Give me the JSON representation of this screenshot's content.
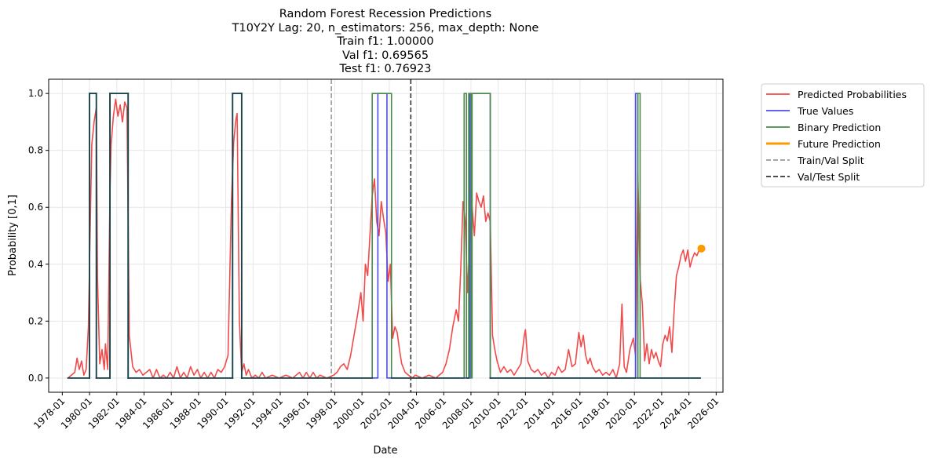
{
  "chart_data": {
    "type": "line",
    "title_lines": [
      "Random Forest Recession Predictions",
      "T10Y2Y Lag: 20, n_estimators: 256, max_depth: None",
      "Train f1: 1.00000",
      "Val f1: 0.69565",
      "Test f1: 0.76923"
    ],
    "xlabel": "Date",
    "ylabel": "Probability [0,1]",
    "xlim": [
      "1977-01-01",
      "2026-07-01"
    ],
    "ylim": [
      -0.05,
      1.05
    ],
    "x_ticks": [
      "1978-01",
      "1980-01",
      "1982-01",
      "1984-01",
      "1986-01",
      "1988-01",
      "1990-01",
      "1992-01",
      "1994-01",
      "1996-01",
      "1998-01",
      "2000-01",
      "2002-01",
      "2004-01",
      "2006-01",
      "2008-01",
      "2010-01",
      "2012-01",
      "2014-01",
      "2016-01",
      "2018-01",
      "2020-01",
      "2022-01",
      "2024-01",
      "2026-01"
    ],
    "y_ticks": [
      "0.0",
      "0.2",
      "0.4",
      "0.6",
      "0.8",
      "1.0"
    ],
    "grid": true,
    "legend_position": "outside-top-right",
    "colors": {
      "predicted": "#f24a4a",
      "true": "#4b4bf0",
      "binary": "#4a8a4a",
      "future": "#ff9900",
      "train_val_split": "#999999",
      "val_test_split": "#333333",
      "overlap": "#17444a"
    },
    "series": [
      {
        "name": "Predicted Probabilities",
        "kind": "line",
        "points": [
          [
            "1978-06",
            0.0
          ],
          [
            "1978-09",
            0.01
          ],
          [
            "1978-12",
            0.02
          ],
          [
            "1979-02",
            0.07
          ],
          [
            "1979-04",
            0.03
          ],
          [
            "1979-06",
            0.06
          ],
          [
            "1979-08",
            0.01
          ],
          [
            "1979-10",
            0.03
          ],
          [
            "1979-12",
            0.18
          ],
          [
            "1980-02",
            0.62
          ],
          [
            "1980-03",
            0.82
          ],
          [
            "1980-05",
            0.9
          ],
          [
            "1980-07",
            0.95
          ],
          [
            "1980-08",
            0.35
          ],
          [
            "1980-10",
            0.05
          ],
          [
            "1980-12",
            0.1
          ],
          [
            "1981-02",
            0.03
          ],
          [
            "1981-03",
            0.12
          ],
          [
            "1981-05",
            0.03
          ],
          [
            "1981-07",
            0.65
          ],
          [
            "1981-08",
            0.82
          ],
          [
            "1981-10",
            0.92
          ],
          [
            "1981-12",
            0.98
          ],
          [
            "1982-02",
            0.92
          ],
          [
            "1982-04",
            0.96
          ],
          [
            "1982-06",
            0.9
          ],
          [
            "1982-08",
            0.97
          ],
          [
            "1982-10",
            0.95
          ],
          [
            "1982-12",
            0.15
          ],
          [
            "1983-03",
            0.04
          ],
          [
            "1983-06",
            0.02
          ],
          [
            "1983-09",
            0.03
          ],
          [
            "1983-12",
            0.01
          ],
          [
            "1984-03",
            0.02
          ],
          [
            "1984-06",
            0.03
          ],
          [
            "1984-09",
            0.0
          ],
          [
            "1984-12",
            0.03
          ],
          [
            "1985-03",
            0.0
          ],
          [
            "1985-06",
            0.01
          ],
          [
            "1985-09",
            0.0
          ],
          [
            "1985-12",
            0.02
          ],
          [
            "1986-03",
            0.0
          ],
          [
            "1986-06",
            0.04
          ],
          [
            "1986-09",
            0.0
          ],
          [
            "1986-12",
            0.02
          ],
          [
            "1987-03",
            0.0
          ],
          [
            "1987-06",
            0.04
          ],
          [
            "1987-09",
            0.01
          ],
          [
            "1987-12",
            0.03
          ],
          [
            "1988-03",
            0.0
          ],
          [
            "1988-06",
            0.02
          ],
          [
            "1988-09",
            0.0
          ],
          [
            "1988-12",
            0.02
          ],
          [
            "1989-03",
            0.0
          ],
          [
            "1989-06",
            0.03
          ],
          [
            "1989-09",
            0.02
          ],
          [
            "1989-12",
            0.04
          ],
          [
            "1990-03",
            0.08
          ],
          [
            "1990-06",
            0.62
          ],
          [
            "1990-08",
            0.83
          ],
          [
            "1990-10",
            0.91
          ],
          [
            "1990-11",
            0.93
          ],
          [
            "1991-01",
            0.2
          ],
          [
            "1991-03",
            0.02
          ],
          [
            "1991-05",
            0.05
          ],
          [
            "1991-07",
            0.01
          ],
          [
            "1991-09",
            0.03
          ],
          [
            "1991-12",
            0.0
          ],
          [
            "1992-03",
            0.01
          ],
          [
            "1992-06",
            0.0
          ],
          [
            "1992-09",
            0.02
          ],
          [
            "1992-12",
            0.0
          ],
          [
            "1993-06",
            0.01
          ],
          [
            "1993-12",
            0.0
          ],
          [
            "1994-06",
            0.01
          ],
          [
            "1994-12",
            0.0
          ],
          [
            "1995-06",
            0.02
          ],
          [
            "1995-09",
            0.0
          ],
          [
            "1995-12",
            0.02
          ],
          [
            "1996-03",
            0.0
          ],
          [
            "1996-06",
            0.02
          ],
          [
            "1996-09",
            0.0
          ],
          [
            "1996-12",
            0.01
          ],
          [
            "1997-06",
            0.0
          ],
          [
            "1997-12",
            0.01
          ],
          [
            "1998-03",
            0.02
          ],
          [
            "1998-06",
            0.04
          ],
          [
            "1998-09",
            0.05
          ],
          [
            "1998-12",
            0.03
          ],
          [
            "1999-03",
            0.08
          ],
          [
            "1999-06",
            0.15
          ],
          [
            "1999-09",
            0.22
          ],
          [
            "1999-12",
            0.3
          ],
          [
            "2000-02",
            0.2
          ],
          [
            "2000-04",
            0.4
          ],
          [
            "2000-06",
            0.36
          ],
          [
            "2000-08",
            0.5
          ],
          [
            "2000-10",
            0.64
          ],
          [
            "2000-12",
            0.7
          ],
          [
            "2001-02",
            0.55
          ],
          [
            "2001-04",
            0.5
          ],
          [
            "2001-06",
            0.62
          ],
          [
            "2001-08",
            0.56
          ],
          [
            "2001-10",
            0.51
          ],
          [
            "2001-12",
            0.34
          ],
          [
            "2002-02",
            0.4
          ],
          [
            "2002-04",
            0.14
          ],
          [
            "2002-06",
            0.18
          ],
          [
            "2002-08",
            0.16
          ],
          [
            "2002-10",
            0.1
          ],
          [
            "2002-12",
            0.05
          ],
          [
            "2003-03",
            0.02
          ],
          [
            "2003-06",
            0.01
          ],
          [
            "2003-09",
            0.0
          ],
          [
            "2003-12",
            0.01
          ],
          [
            "2004-06",
            0.0
          ],
          [
            "2004-12",
            0.01
          ],
          [
            "2005-06",
            0.0
          ],
          [
            "2005-09",
            0.01
          ],
          [
            "2005-12",
            0.02
          ],
          [
            "2006-03",
            0.05
          ],
          [
            "2006-06",
            0.1
          ],
          [
            "2006-09",
            0.18
          ],
          [
            "2006-12",
            0.24
          ],
          [
            "2007-02",
            0.2
          ],
          [
            "2007-04",
            0.38
          ],
          [
            "2007-06",
            0.62
          ],
          [
            "2007-08",
            0.55
          ],
          [
            "2007-10",
            0.3
          ],
          [
            "2007-12",
            0.48
          ],
          [
            "2008-02",
            0.6
          ],
          [
            "2008-04",
            0.5
          ],
          [
            "2008-06",
            0.65
          ],
          [
            "2008-08",
            0.62
          ],
          [
            "2008-10",
            0.6
          ],
          [
            "2008-12",
            0.64
          ],
          [
            "2009-02",
            0.55
          ],
          [
            "2009-04",
            0.58
          ],
          [
            "2009-06",
            0.55
          ],
          [
            "2009-08",
            0.15
          ],
          [
            "2009-10",
            0.1
          ],
          [
            "2009-12",
            0.06
          ],
          [
            "2010-03",
            0.02
          ],
          [
            "2010-06",
            0.04
          ],
          [
            "2010-09",
            0.02
          ],
          [
            "2010-12",
            0.03
          ],
          [
            "2011-03",
            0.01
          ],
          [
            "2011-06",
            0.03
          ],
          [
            "2011-09",
            0.05
          ],
          [
            "2011-12",
            0.15
          ],
          [
            "2012-01",
            0.17
          ],
          [
            "2012-03",
            0.06
          ],
          [
            "2012-06",
            0.03
          ],
          [
            "2012-09",
            0.02
          ],
          [
            "2012-12",
            0.03
          ],
          [
            "2013-03",
            0.01
          ],
          [
            "2013-06",
            0.02
          ],
          [
            "2013-09",
            0.0
          ],
          [
            "2013-12",
            0.02
          ],
          [
            "2014-03",
            0.01
          ],
          [
            "2014-06",
            0.04
          ],
          [
            "2014-09",
            0.02
          ],
          [
            "2014-12",
            0.03
          ],
          [
            "2015-03",
            0.1
          ],
          [
            "2015-06",
            0.04
          ],
          [
            "2015-09",
            0.05
          ],
          [
            "2015-12",
            0.16
          ],
          [
            "2016-02",
            0.11
          ],
          [
            "2016-04",
            0.15
          ],
          [
            "2016-06",
            0.08
          ],
          [
            "2016-08",
            0.05
          ],
          [
            "2016-10",
            0.07
          ],
          [
            "2016-12",
            0.04
          ],
          [
            "2017-03",
            0.02
          ],
          [
            "2017-06",
            0.03
          ],
          [
            "2017-09",
            0.01
          ],
          [
            "2017-12",
            0.02
          ],
          [
            "2018-03",
            0.01
          ],
          [
            "2018-06",
            0.03
          ],
          [
            "2018-09",
            0.0
          ],
          [
            "2018-12",
            0.05
          ],
          [
            "2019-02",
            0.26
          ],
          [
            "2019-04",
            0.04
          ],
          [
            "2019-06",
            0.02
          ],
          [
            "2019-09",
            0.1
          ],
          [
            "2019-12",
            0.14
          ],
          [
            "2020-02",
            0.08
          ],
          [
            "2020-04",
            0.72
          ],
          [
            "2020-06",
            0.35
          ],
          [
            "2020-08",
            0.26
          ],
          [
            "2020-10",
            0.06
          ],
          [
            "2020-12",
            0.12
          ],
          [
            "2021-02",
            0.05
          ],
          [
            "2021-04",
            0.1
          ],
          [
            "2021-06",
            0.07
          ],
          [
            "2021-08",
            0.09
          ],
          [
            "2021-10",
            0.06
          ],
          [
            "2021-12",
            0.04
          ],
          [
            "2022-02",
            0.12
          ],
          [
            "2022-04",
            0.15
          ],
          [
            "2022-06",
            0.13
          ],
          [
            "2022-08",
            0.18
          ],
          [
            "2022-10",
            0.09
          ],
          [
            "2022-12",
            0.24
          ],
          [
            "2023-02",
            0.36
          ],
          [
            "2023-04",
            0.39
          ],
          [
            "2023-06",
            0.43
          ],
          [
            "2023-08",
            0.45
          ],
          [
            "2023-10",
            0.41
          ],
          [
            "2023-12",
            0.45
          ],
          [
            "2024-02",
            0.39
          ],
          [
            "2024-04",
            0.42
          ],
          [
            "2024-06",
            0.44
          ],
          [
            "2024-08",
            0.43
          ],
          [
            "2024-10",
            0.45
          ]
        ]
      },
      {
        "name": "True Values",
        "kind": "step",
        "points": [
          [
            "1978-06",
            0
          ],
          [
            "1980-01",
            0
          ],
          [
            "1980-01",
            1
          ],
          [
            "1980-07",
            1
          ],
          [
            "1980-07",
            0
          ],
          [
            "1981-07",
            0
          ],
          [
            "1981-07",
            1
          ],
          [
            "1982-11",
            1
          ],
          [
            "1982-11",
            0
          ],
          [
            "1990-07",
            0
          ],
          [
            "1990-07",
            1
          ],
          [
            "1991-03",
            1
          ],
          [
            "1991-03",
            0
          ],
          [
            "2001-03",
            0
          ],
          [
            "2001-03",
            1
          ],
          [
            "2001-11",
            1
          ],
          [
            "2001-11",
            0
          ],
          [
            "2007-12",
            0
          ],
          [
            "2007-12",
            1
          ],
          [
            "2009-06",
            1
          ],
          [
            "2009-06",
            0
          ],
          [
            "2020-02",
            0
          ],
          [
            "2020-02",
            1
          ],
          [
            "2020-04",
            1
          ],
          [
            "2020-04",
            0
          ],
          [
            "2024-11",
            0
          ]
        ]
      },
      {
        "name": "Binary Prediction",
        "kind": "step",
        "points": [
          [
            "1978-06",
            0
          ],
          [
            "1980-01",
            0
          ],
          [
            "1980-01",
            1
          ],
          [
            "1980-07",
            1
          ],
          [
            "1980-07",
            0
          ],
          [
            "1981-07",
            0
          ],
          [
            "1981-07",
            1
          ],
          [
            "1982-11",
            1
          ],
          [
            "1982-11",
            0
          ],
          [
            "1990-07",
            0
          ],
          [
            "1990-07",
            1
          ],
          [
            "1991-03",
            1
          ],
          [
            "1991-03",
            0
          ],
          [
            "2000-10",
            0
          ],
          [
            "2000-10",
            1
          ],
          [
            "2002-03",
            1
          ],
          [
            "2002-03",
            0
          ],
          [
            "2007-07",
            0
          ],
          [
            "2007-07",
            1
          ],
          [
            "2007-09",
            1
          ],
          [
            "2007-09",
            0
          ],
          [
            "2007-11",
            0
          ],
          [
            "2007-11",
            1
          ],
          [
            "2008-01",
            1
          ],
          [
            "2008-01",
            0
          ],
          [
            "2008-02",
            0
          ],
          [
            "2008-02",
            1
          ],
          [
            "2009-06",
            1
          ],
          [
            "2009-06",
            0
          ],
          [
            "2020-04",
            0
          ],
          [
            "2020-04",
            1
          ],
          [
            "2020-06",
            1
          ],
          [
            "2020-06",
            0
          ],
          [
            "2024-11",
            0
          ]
        ]
      },
      {
        "name": "Future Prediction",
        "kind": "point",
        "points": [
          [
            "2024-12",
            0.455
          ]
        ]
      },
      {
        "name": "Train/Val Split",
        "kind": "vline",
        "x": "1997-10"
      },
      {
        "name": "Val/Test Split",
        "kind": "vline",
        "x": "2003-08"
      }
    ]
  }
}
